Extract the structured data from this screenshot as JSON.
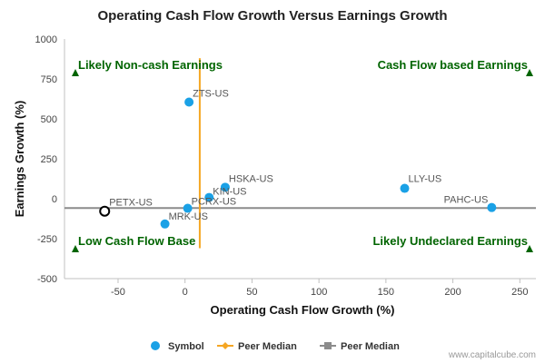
{
  "chart_data": {
    "type": "scatter",
    "title": "Operating Cash Flow Growth Versus Earnings Growth",
    "xlabel": "Operating Cash Flow Growth (%)",
    "ylabel": "Earnings Growth (%)",
    "xlim": [
      -90,
      262
    ],
    "ylim": [
      -500,
      1000
    ],
    "xticks": [
      -50,
      0,
      50,
      100,
      150,
      200,
      250
    ],
    "yticks": [
      -500,
      -250,
      0,
      250,
      500,
      750,
      1000
    ],
    "grid": false,
    "legend_position": "bottom",
    "points": [
      {
        "label": "ZTS-US",
        "x": 3,
        "y": 605
      },
      {
        "label": "HSKA-US",
        "x": 30,
        "y": 72
      },
      {
        "label": "KIN-US",
        "x": 18,
        "y": 8
      },
      {
        "label": "PCRX-US",
        "x": 2,
        "y": -60
      },
      {
        "label": "MRK-US",
        "x": -15,
        "y": -158
      },
      {
        "label": "LLY-US",
        "x": 164,
        "y": 65
      },
      {
        "label": "PAHC-US",
        "x": 229,
        "y": -55
      }
    ],
    "highlight": {
      "label": "PETX-US",
      "x": -60,
      "y": -78
    },
    "peer_median_x": 11,
    "peer_median_y": -58,
    "quadrants": {
      "top_left": "Likely Non-cash Earnings",
      "top_right": "Cash Flow based Earnings",
      "bottom_left": "Low Cash Flow Base",
      "bottom_right": "Likely Undeclared Earnings"
    },
    "legend": [
      {
        "name": "Symbol",
        "color": "#1aa1e6"
      },
      {
        "name": "Peer Median",
        "color": "#f5a623"
      },
      {
        "name": "Peer Median",
        "color": "#8c8c8c"
      }
    ],
    "credit": "www.capitalcube.com"
  },
  "colors": {
    "point": "#1aa1e6",
    "median_x": "#f5a623",
    "median_y": "#8c8c8c",
    "quadrant_text": "#006400",
    "axis": "#c0c0c0"
  }
}
